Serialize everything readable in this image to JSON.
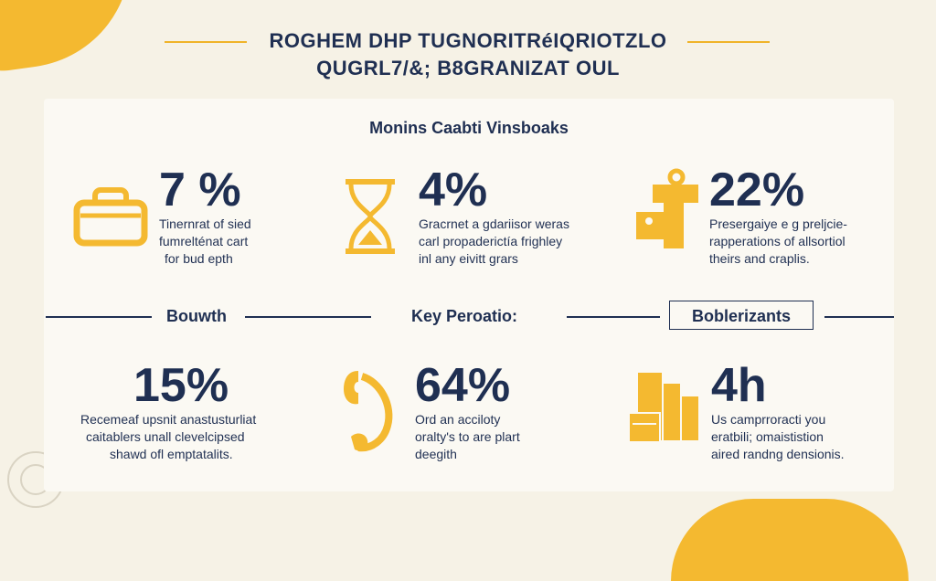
{
  "header": {
    "title_line1": "ROGHEM DHP TUGNORITRéIQRIOTZLO",
    "title_line2": "QUGRL7/&; B8GRANIZAT OUL"
  },
  "section_top": {
    "title": "Monins Caabti Vinsboaks"
  },
  "stats_top": [
    {
      "value": "7 %",
      "icon": "shopping-basket-icon",
      "desc": [
        "Tinernrat of sied",
        "fumrelténat cart",
        "for bud epth"
      ]
    },
    {
      "value": "4%",
      "icon": "hourglass-icon",
      "desc": [
        "Gracrnet a gdariisor weras",
        "carl propaderictía frighley",
        "inl any eivitt grars"
      ]
    },
    {
      "value": "22%",
      "icon": "key-lock-icon",
      "desc": [
        "Presergaiye e g preljcie-",
        "rapperations of allsortiol",
        "theirs and craplis."
      ]
    }
  ],
  "dividers": {
    "left_label": "Bouwth",
    "center_label": "Key Peroatio:",
    "right_label": "Boblerizants"
  },
  "stats_bottom": [
    {
      "value": "15%",
      "icon": "swirl-icon",
      "desc": [
        "Recemeaf upsnit anastusturliat",
        "caitablers unall clevelcipsed",
        "shawd ofl emptatalits."
      ]
    },
    {
      "value": "64%",
      "icon": "phone-handset-icon",
      "desc": [
        "Ord an acciloty",
        "oralty's to are plart",
        "deegith"
      ]
    },
    {
      "value": "4h",
      "icon": "stacked-boxes-icon",
      "desc": [
        "Us camprroracti you",
        "eratbili; omaististion",
        "aired randng densionis."
      ]
    }
  ],
  "colors": {
    "accent": "#f4b930",
    "navy": "#1f2f52",
    "background": "#f6f2e6",
    "card": "#fbf9f3"
  }
}
